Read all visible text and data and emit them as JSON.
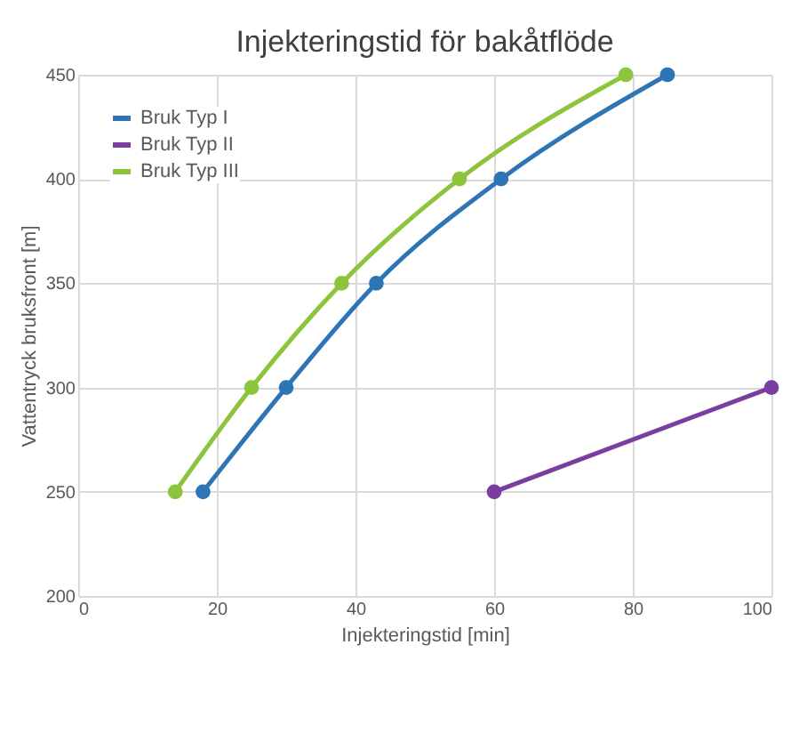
{
  "chart_data": {
    "type": "line",
    "title": "Injekteringstid för bakåtflöde",
    "xlabel": "Injekteringstid [min]",
    "ylabel": "Vattentryck bruksfront [m]",
    "xlim": [
      0,
      100
    ],
    "xticks": [
      0,
      20,
      40,
      60,
      80,
      100
    ],
    "ylim": [
      200,
      450
    ],
    "yticks": [
      200,
      250,
      300,
      350,
      400,
      450
    ],
    "grid": true,
    "legend": "top left",
    "marker": "circle",
    "line_style": "solid",
    "series": [
      {
        "name": "Bruk Typ I",
        "color": "#2e75b6",
        "x": [
          18,
          30,
          43,
          61,
          85
        ],
        "values": [
          250,
          300,
          350,
          400,
          450
        ]
      },
      {
        "name": "Bruk Typ II",
        "color": "#7a3ea0",
        "x": [
          60,
          100
        ],
        "values": [
          250,
          300
        ]
      },
      {
        "name": "Bruk Typ III",
        "color": "#8cc43c",
        "x": [
          14,
          25,
          38,
          55,
          79
        ],
        "values": [
          250,
          300,
          350,
          400,
          450
        ]
      }
    ]
  }
}
